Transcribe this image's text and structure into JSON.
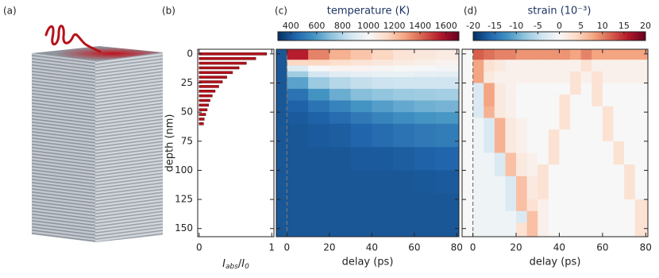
{
  "panel_labels": [
    "(a)",
    "(b)",
    "(c)",
    "(d)"
  ],
  "chart_data": [
    {
      "type": "hbar",
      "xlabel_parts": [
        "I",
        "abs",
        "/",
        "I",
        "0"
      ],
      "ylabel": "depth (nm)",
      "depths": [
        0,
        4,
        8,
        12,
        16,
        20,
        24,
        28,
        32,
        36,
        40,
        44,
        48,
        52,
        56,
        60
      ],
      "values": [
        0.93,
        0.78,
        0.65,
        0.55,
        0.46,
        0.38,
        0.32,
        0.27,
        0.22,
        0.18,
        0.15,
        0.13,
        0.11,
        0.09,
        0.07,
        0.06
      ],
      "color": "#b5121b",
      "xlim": [
        -0.02,
        1.03
      ],
      "xticks": [
        0,
        1
      ],
      "ylim": [
        -4,
        157
      ],
      "yticks": [
        0,
        25,
        50,
        75,
        100,
        125,
        150
      ]
    },
    {
      "type": "heatmap",
      "colorbar_label": "temperature (K)",
      "xlabel": "delay (ps)",
      "x_edges": [
        -5,
        0,
        10,
        20,
        30,
        40,
        50,
        60,
        70,
        81
      ],
      "y_edges": [
        -4,
        5,
        10,
        15,
        20,
        30,
        40,
        50,
        60,
        80,
        100,
        120,
        157
      ],
      "values": [
        [
          400,
          1550,
          1350,
          1250,
          1200,
          1150,
          1100,
          1080,
          1060
        ],
        [
          400,
          1150,
          1150,
          1120,
          1100,
          1080,
          1060,
          1040,
          1030
        ],
        [
          400,
          900,
          1000,
          1020,
          1020,
          1010,
          1000,
          990,
          980
        ],
        [
          400,
          750,
          870,
          920,
          940,
          950,
          950,
          940,
          930
        ],
        [
          400,
          620,
          740,
          800,
          830,
          850,
          860,
          860,
          860
        ],
        [
          400,
          480,
          580,
          650,
          700,
          720,
          740,
          750,
          760
        ],
        [
          400,
          430,
          480,
          530,
          580,
          610,
          640,
          660,
          670
        ],
        [
          400,
          410,
          430,
          460,
          500,
          530,
          560,
          580,
          590
        ],
        [
          400,
          400,
          410,
          420,
          440,
          460,
          480,
          500,
          510
        ],
        [
          400,
          400,
          400,
          400,
          410,
          410,
          420,
          430,
          440
        ],
        [
          400,
          400,
          400,
          400,
          400,
          400,
          400,
          405,
          410
        ],
        [
          400,
          400,
          400,
          400,
          400,
          400,
          400,
          400,
          400
        ]
      ],
      "clim": [
        300,
        1700
      ],
      "cticks": [
        400,
        600,
        800,
        1000,
        1200,
        1400,
        1600
      ],
      "cmap": [
        "#053061",
        "#2166ac",
        "#4393c3",
        "#92c5de",
        "#d1e5f0",
        "#f7f7f7",
        "#fddbc7",
        "#f4a582",
        "#d6604d",
        "#b2182b",
        "#67001f"
      ],
      "xlim": [
        -5,
        81
      ],
      "xticks": [
        0,
        20,
        40,
        60,
        80
      ],
      "ylim": [
        -4,
        157
      ],
      "yticks": [
        0,
        25,
        50,
        75,
        100,
        125,
        150
      ],
      "vline": 0
    },
    {
      "type": "heatmap",
      "colorbar_label": "strain (10⁻³)",
      "xlabel": "delay (ps)",
      "x_edges": [
        -5,
        0,
        5,
        10,
        15,
        20,
        25,
        30,
        35,
        40,
        45,
        50,
        55,
        60,
        65,
        70,
        75,
        81
      ],
      "y_edges": [
        -4,
        5,
        15,
        25,
        35,
        45,
        55,
        65,
        75,
        85,
        95,
        105,
        115,
        125,
        135,
        145,
        157
      ],
      "values": [
        [
          0,
          12,
          11,
          10,
          10,
          9,
          9,
          9,
          9,
          9,
          8,
          10,
          8,
          8,
          8,
          8,
          8
        ],
        [
          0,
          8,
          3,
          2,
          1,
          1,
          1,
          1,
          1,
          1,
          1,
          3,
          1,
          1,
          1,
          1,
          1
        ],
        [
          0,
          8,
          2,
          1,
          1,
          1,
          1,
          1,
          1,
          1,
          3,
          1,
          3,
          1,
          1,
          1,
          1
        ],
        [
          0,
          -3,
          8,
          2,
          1,
          0,
          0,
          0,
          0,
          0,
          3,
          0,
          3,
          0,
          0,
          0,
          0
        ],
        [
          0,
          -3,
          8,
          2,
          1,
          0,
          0,
          0,
          0,
          3,
          0,
          0,
          3,
          0,
          0,
          0,
          0
        ],
        [
          0,
          -3,
          7,
          2,
          1,
          0,
          0,
          0,
          0,
          3,
          0,
          0,
          0,
          3,
          0,
          0,
          0
        ],
        [
          0,
          -1,
          -3,
          7,
          2,
          1,
          0,
          0,
          0,
          3,
          0,
          0,
          0,
          3,
          0,
          0,
          0
        ],
        [
          0,
          -1,
          -3,
          7,
          2,
          1,
          0,
          0,
          3,
          0,
          0,
          0,
          0,
          3,
          0,
          0,
          0
        ],
        [
          0,
          -1,
          -3,
          7,
          2,
          1,
          0,
          0,
          3,
          0,
          0,
          0,
          0,
          0,
          3,
          0,
          0
        ],
        [
          0,
          -1,
          -1,
          -3,
          6,
          2,
          1,
          0,
          3,
          0,
          0,
          0,
          0,
          0,
          3,
          0,
          0
        ],
        [
          0,
          -1,
          -1,
          -3,
          6,
          2,
          1,
          3,
          0,
          0,
          0,
          0,
          0,
          0,
          0,
          3,
          0
        ],
        [
          0,
          -1,
          -1,
          -1,
          -3,
          6,
          2,
          3,
          0,
          0,
          0,
          0,
          0,
          0,
          0,
          3,
          0
        ],
        [
          0,
          -1,
          -1,
          -1,
          -3,
          6,
          2,
          3,
          0,
          0,
          0,
          0,
          0,
          0,
          0,
          3,
          0
        ],
        [
          0,
          -1,
          -1,
          -1,
          -3,
          6,
          3,
          1,
          0,
          0,
          0,
          0,
          0,
          0,
          0,
          0,
          3
        ],
        [
          0,
          -1,
          -1,
          -1,
          -1,
          -3,
          6,
          1,
          0,
          0,
          0,
          0,
          0,
          0,
          0,
          0,
          3
        ],
        [
          0,
          -1,
          -1,
          -1,
          -1,
          3,
          6,
          1,
          0,
          0,
          0,
          0,
          0,
          0,
          0,
          0,
          3
        ]
      ],
      "clim": [
        -20,
        20
      ],
      "cticks": [
        -20,
        -15,
        -10,
        -5,
        0,
        5,
        10,
        15,
        20
      ],
      "cmap": [
        "#053061",
        "#2166ac",
        "#4393c3",
        "#92c5de",
        "#d1e5f0",
        "#f7f7f7",
        "#fddbc7",
        "#f4a582",
        "#d6604d",
        "#b2182b",
        "#67001f"
      ],
      "xlim": [
        -5,
        81
      ],
      "xticks": [
        0,
        20,
        40,
        60,
        80
      ],
      "ylim": [
        -4,
        157
      ],
      "yticks": [
        0,
        25,
        50,
        75,
        100,
        125,
        150
      ],
      "vline": 0
    }
  ]
}
